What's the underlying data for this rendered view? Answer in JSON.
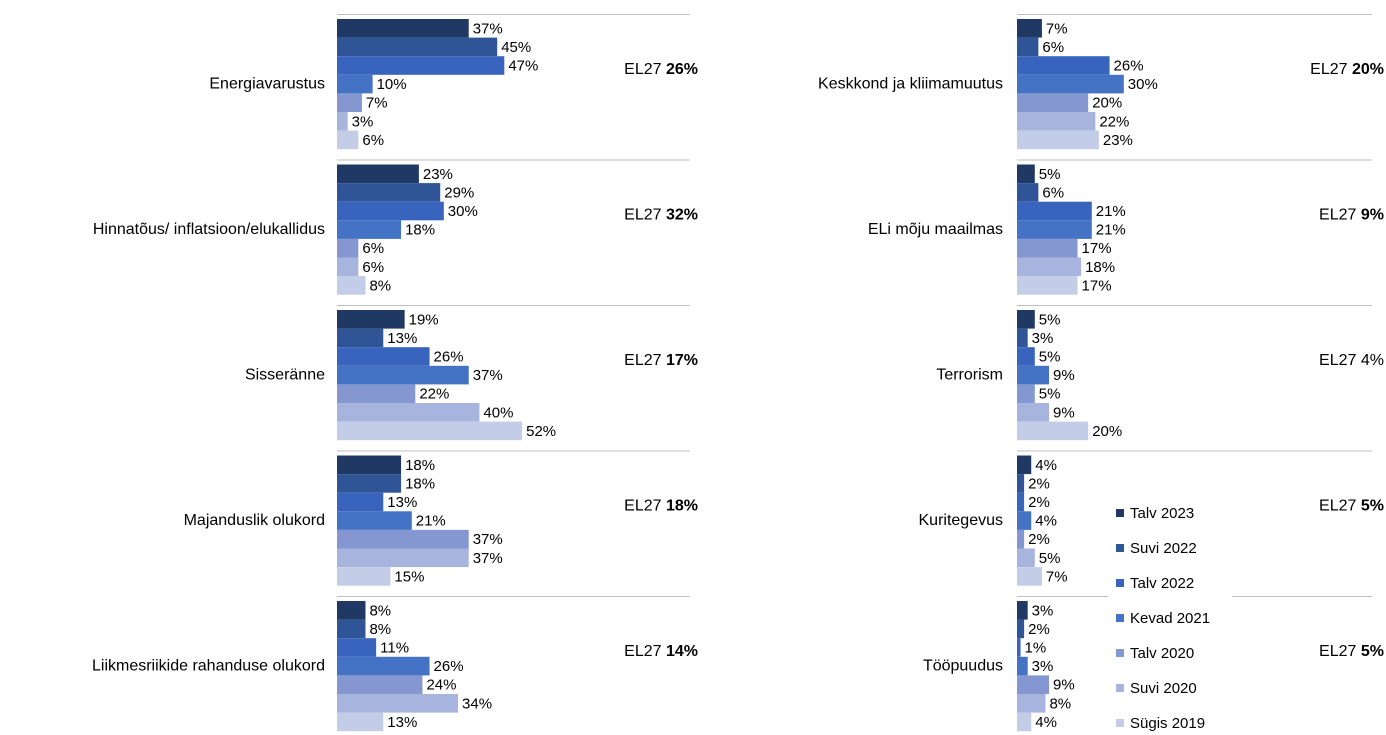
{
  "chart_data": {
    "type": "bar",
    "series": [
      {
        "name": "Talv 2023",
        "color": "#203864"
      },
      {
        "name": "Suvi 2022",
        "color": "#2f5597"
      },
      {
        "name": "Talv 2022",
        "color": "#3864bd"
      },
      {
        "name": "Kevad 2021",
        "color": "#4472c4"
      },
      {
        "name": "Talv 2020",
        "color": "#8497d0"
      },
      {
        "name": "Suvi 2020",
        "color": "#a7b4dd"
      },
      {
        "name": "Sügis 2019",
        "color": "#c4cde8"
      }
    ],
    "benchmark_label": "EL27",
    "panels": [
      {
        "category": "Energiavarustus",
        "values": [
          37,
          45,
          47,
          10,
          7,
          3,
          6
        ],
        "value_labels": [
          "37%",
          "45%",
          "47%",
          "10%",
          "7%",
          "3%",
          "6%"
        ],
        "benchmark": 26,
        "benchmark_label": "26%",
        "benchmark_bold": true
      },
      {
        "category": "Hinnatõus/ inflatsioon/elukallidus",
        "values": [
          23,
          29,
          30,
          18,
          6,
          6,
          8
        ],
        "value_labels": [
          "23%",
          "29%",
          "30%",
          "18%",
          "6%",
          "6%",
          "8%"
        ],
        "benchmark": 32,
        "benchmark_label": "32%",
        "benchmark_bold": true
      },
      {
        "category": "Sisseränne",
        "values": [
          19,
          13,
          26,
          37,
          22,
          40,
          52
        ],
        "value_labels": [
          "19%",
          "13%",
          "26%",
          "37%",
          "22%",
          "40%",
          "52%"
        ],
        "benchmark": 17,
        "benchmark_label": "17%",
        "benchmark_bold": true
      },
      {
        "category": "Majanduslik olukord",
        "values": [
          18,
          18,
          13,
          21,
          37,
          37,
          15
        ],
        "value_labels": [
          "18%",
          "18%",
          "13%",
          "21%",
          "37%",
          "37%",
          "15%"
        ],
        "benchmark": 18,
        "benchmark_label": "18%",
        "benchmark_bold": true
      },
      {
        "category": "Liikmesriikide rahanduse olukord",
        "values": [
          8,
          8,
          11,
          26,
          24,
          34,
          13
        ],
        "value_labels": [
          "8%",
          "8%",
          "11%",
          "26%",
          "24%",
          "34%",
          "13%"
        ],
        "benchmark": 14,
        "benchmark_label": "14%",
        "benchmark_bold": true
      },
      {
        "category": "Keskkond ja kliimamuutus",
        "values": [
          7,
          6,
          26,
          30,
          20,
          22,
          23
        ],
        "value_labels": [
          "7%",
          "6%",
          "26%",
          "30%",
          "20%",
          "22%",
          "23%"
        ],
        "benchmark": 20,
        "benchmark_label": "20%",
        "benchmark_bold": true
      },
      {
        "category": "ELi mõju maailmas",
        "values": [
          5,
          6,
          21,
          21,
          17,
          18,
          17
        ],
        "value_labels": [
          "5%",
          "6%",
          "21%",
          "21%",
          "17%",
          "18%",
          "17%"
        ],
        "benchmark": 9,
        "benchmark_label": "9%",
        "benchmark_bold": true
      },
      {
        "category": "Terrorism",
        "values": [
          5,
          3,
          5,
          9,
          5,
          9,
          20
        ],
        "value_labels": [
          "5%",
          "3%",
          "5%",
          "9%",
          "5%",
          "9%",
          "20%"
        ],
        "benchmark": 4,
        "benchmark_label": "4%",
        "benchmark_bold": false
      },
      {
        "category": "Kuritegevus",
        "values": [
          4,
          2,
          2,
          4,
          2,
          5,
          7
        ],
        "value_labels": [
          "4%",
          "2%",
          "2%",
          "4%",
          "2%",
          "5%",
          "7%"
        ],
        "benchmark": 5,
        "benchmark_label": "5%",
        "benchmark_bold": true
      },
      {
        "category": "Tööpuudus",
        "values": [
          3,
          2,
          1,
          3,
          9,
          8,
          4
        ],
        "value_labels": [
          "3%",
          "2%",
          "1%",
          "3%",
          "9%",
          "8%",
          "4%"
        ],
        "benchmark": 5,
        "benchmark_label": "5%",
        "benchmark_bold": true
      }
    ]
  }
}
